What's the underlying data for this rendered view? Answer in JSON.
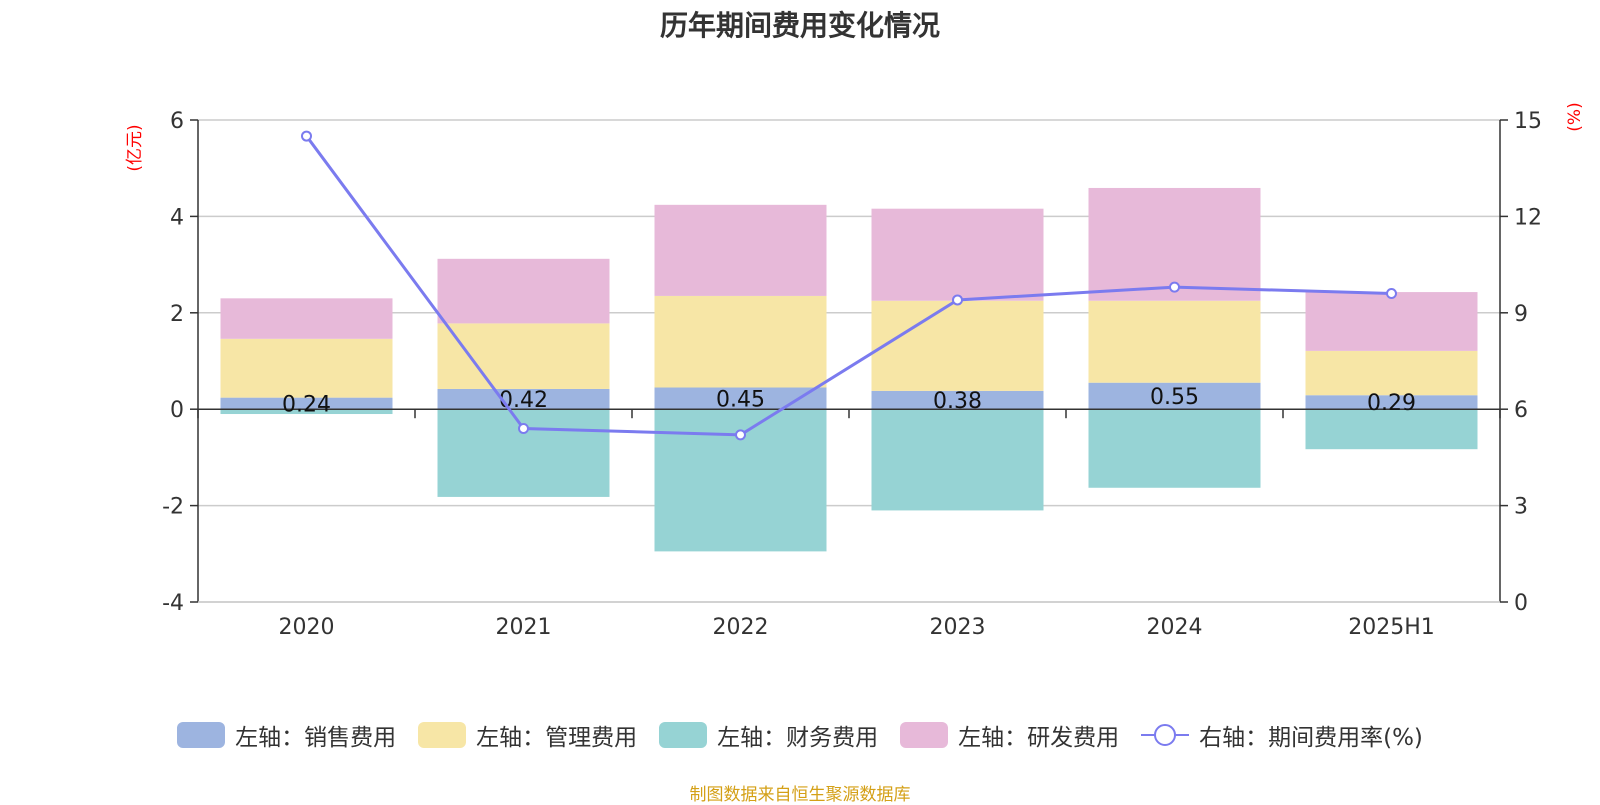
{
  "chart_data": {
    "type": "bar",
    "stacked": true,
    "title": "历年期间费用变化情况",
    "categories": [
      "2020",
      "2021",
      "2022",
      "2023",
      "2024",
      "2025H1"
    ],
    "series": [
      {
        "name": "左轴：销售费用",
        "axis": "left",
        "color": "#9db4e0",
        "values": [
          0.24,
          0.42,
          0.45,
          0.38,
          0.55,
          0.29
        ],
        "labels": [
          "0.24",
          "0.42",
          "0.45",
          "0.38",
          "0.55",
          "0.29"
        ]
      },
      {
        "name": "左轴：管理费用",
        "axis": "left",
        "color": "#f7e6a6",
        "values": [
          1.22,
          1.36,
          1.9,
          1.87,
          1.7,
          0.92
        ]
      },
      {
        "name": "左轴：财务费用",
        "axis": "left",
        "color": "#96d3d4",
        "values": [
          -0.1,
          -1.82,
          -2.95,
          -2.1,
          -1.63,
          -0.83
        ]
      },
      {
        "name": "左轴：研发费用",
        "axis": "left",
        "color": "#e7b9d9",
        "values": [
          0.84,
          1.34,
          1.89,
          1.91,
          2.34,
          1.22
        ]
      },
      {
        "name": "右轴：期间费用率(%)",
        "axis": "right",
        "type": "line",
        "color": "#7b7bef",
        "values": [
          14.5,
          5.4,
          5.2,
          9.4,
          9.8,
          9.6
        ]
      }
    ],
    "y_left": {
      "unit": "(亿元)",
      "ylim": [
        -4,
        6
      ],
      "ticks": [
        "-4",
        "-2",
        "0",
        "2",
        "4",
        "6"
      ]
    },
    "y_right": {
      "unit": "(%)",
      "ylim": [
        0,
        15
      ],
      "ticks": [
        "0",
        "3",
        "6",
        "9",
        "12",
        "15"
      ]
    },
    "grid": true,
    "legend_position": "bottom"
  },
  "source": "制图数据来自恒生聚源数据库"
}
